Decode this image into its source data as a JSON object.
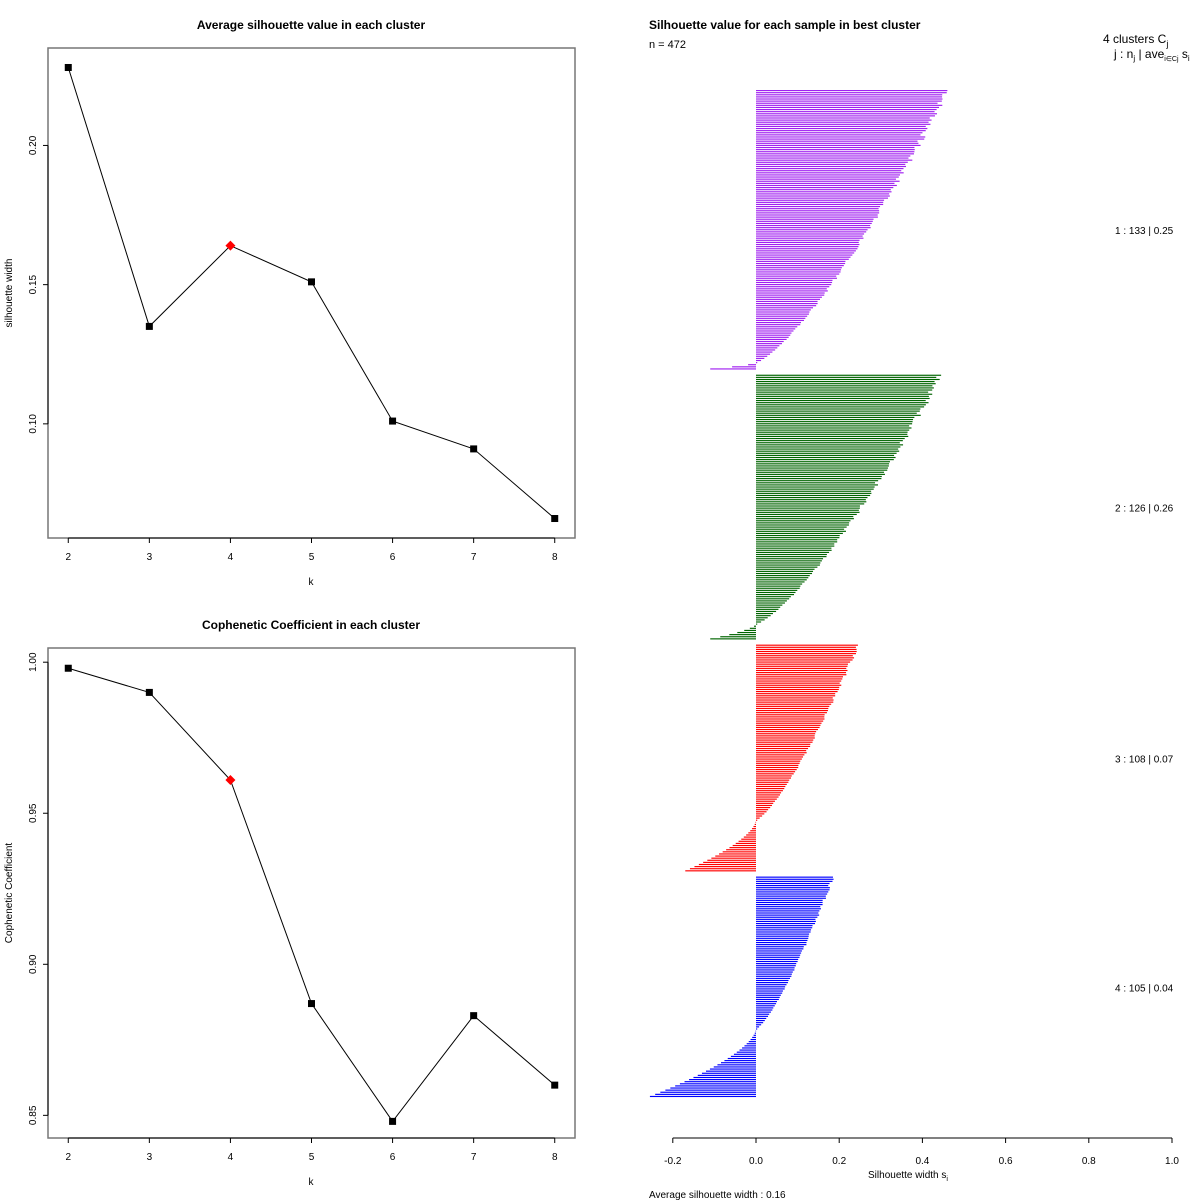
{
  "chart_data": [
    {
      "type": "line",
      "title": "Average silhouette value in each cluster",
      "xlabel": "k",
      "ylabel": "silhouette width",
      "x": [
        2,
        3,
        4,
        5,
        6,
        7,
        8
      ],
      "values": [
        0.228,
        0.135,
        0.164,
        0.151,
        0.101,
        0.091,
        0.066
      ],
      "highlight_k": 4,
      "xticks": [
        "2",
        "3",
        "4",
        "5",
        "6",
        "7",
        "8"
      ],
      "yticks": [
        0.1,
        0.15,
        0.2
      ],
      "ytick_labels": [
        "0.10",
        "0.15",
        "0.20"
      ],
      "xlim": [
        1.75,
        8.25
      ],
      "ylim": [
        0.059,
        0.235
      ],
      "colors": {
        "line": "#000000",
        "marker": "#000000",
        "highlight": "#ff0000"
      }
    },
    {
      "type": "line",
      "title": "Cophenetic Coefficient in each cluster",
      "xlabel": "k",
      "ylabel": "Cophenetic Coefficient",
      "x": [
        2,
        3,
        4,
        5,
        6,
        7,
        8
      ],
      "values": [
        0.998,
        0.99,
        0.961,
        0.887,
        0.848,
        0.883,
        0.86
      ],
      "highlight_k": 4,
      "xticks": [
        "2",
        "3",
        "4",
        "5",
        "6",
        "7",
        "8"
      ],
      "yticks": [
        0.85,
        0.9,
        0.95,
        1.0
      ],
      "ytick_labels": [
        "0.85",
        "0.90",
        "0.95",
        "1.00"
      ],
      "xlim": [
        1.75,
        8.25
      ],
      "ylim": [
        0.8425,
        1.0047
      ],
      "colors": {
        "line": "#000000",
        "marker": "#000000",
        "highlight": "#ff0000"
      }
    },
    {
      "type": "bar",
      "orientation": "horizontal",
      "title": "Silhouette value for each sample in best cluster",
      "n_label": "n = 472",
      "n": 472,
      "xlabel": "Silhouette width s",
      "xlabel_sub": "i",
      "xlim": [
        -0.25,
        1.0
      ],
      "xticks": [
        -0.2,
        0.0,
        0.2,
        0.4,
        0.6,
        0.8,
        1.0
      ],
      "xtick_labels": [
        "-0.2",
        "0.0",
        "0.2",
        "0.4",
        "0.6",
        "0.8",
        "1.0"
      ],
      "legend_header": "4  clusters  C",
      "legend_header_sub": "j",
      "legend_sub": "j :  n",
      "legend_sub2": " | ave",
      "legend_sub3": "i∈Cj",
      "legend_sub4": " s",
      "legend_sub5": "i",
      "average_label": "Average silhouette width :  0.16",
      "average": 0.16,
      "clusters": [
        {
          "id": 1,
          "n": 133,
          "ave": 0.25,
          "label": "1 :   133  |  0.25",
          "color": "#a020f0",
          "max": 0.46,
          "min": -0.11,
          "n_negative": 3
        },
        {
          "id": 2,
          "n": 126,
          "ave": 0.26,
          "label": "2 :   126  |  0.26",
          "color": "#006400",
          "max": 0.445,
          "min": -0.11,
          "n_negative": 7
        },
        {
          "id": 3,
          "n": 108,
          "ave": 0.07,
          "label": "3 :   108  |  0.07",
          "color": "#ff0000",
          "max": 0.245,
          "min": -0.17,
          "n_negative": 24
        },
        {
          "id": 4,
          "n": 105,
          "ave": 0.04,
          "label": "4 :   105  |  0.04",
          "color": "#0000ff",
          "max": 0.185,
          "min": -0.255,
          "n_negative": 32
        }
      ]
    }
  ]
}
